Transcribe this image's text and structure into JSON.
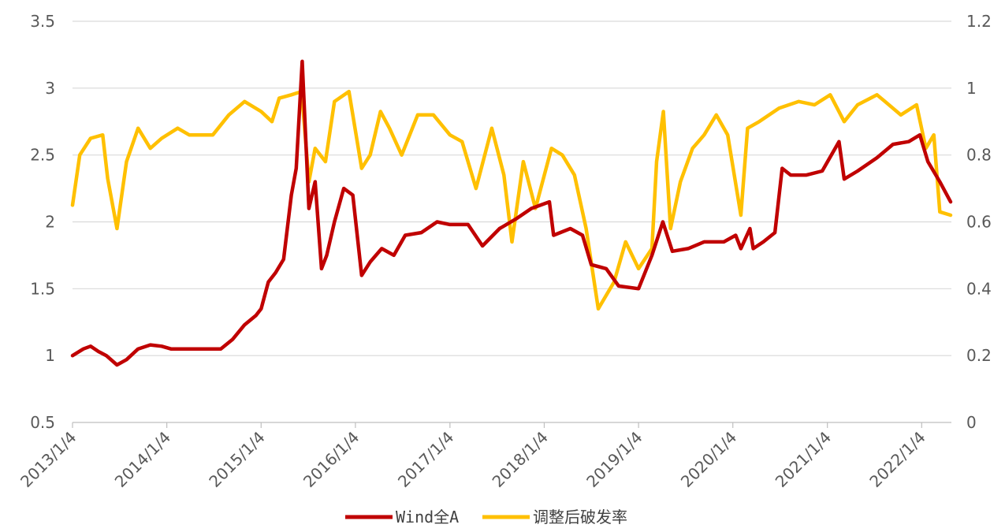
{
  "chart_data": {
    "type": "line",
    "title": "",
    "xlabel": "",
    "ylabel": "",
    "x_ticks": [
      "2013/1/4",
      "2014/1/4",
      "2015/1/4",
      "2016/1/4",
      "2017/1/4",
      "2018/1/4",
      "2019/1/4",
      "2020/1/4",
      "2021/1/4",
      "2022/1/4"
    ],
    "xlim": [
      "2013/1/4",
      "2022/4/29"
    ],
    "ylim_left": [
      0.5,
      3.5
    ],
    "y_ticks_left": [
      "0.5",
      "1",
      "1.5",
      "2",
      "2.5",
      "3",
      "3.5"
    ],
    "ylim_right": [
      0,
      1.2
    ],
    "y_ticks_right": [
      "0",
      "0.2",
      "0.4",
      "0.6",
      "0.8",
      "1",
      "1.2"
    ],
    "grid": "horizontal",
    "legend_position": "bottom",
    "series": [
      {
        "name": "Wind全A",
        "axis": "left",
        "color": "#C00000",
        "points": [
          [
            "2013/1/4",
            1.0
          ],
          [
            "2013/2/15",
            1.05
          ],
          [
            "2013/3/15",
            1.07
          ],
          [
            "2013/4/15",
            1.03
          ],
          [
            "2013/5/15",
            1.0
          ],
          [
            "2013/6/25",
            0.93
          ],
          [
            "2013/8/1",
            0.97
          ],
          [
            "2013/9/15",
            1.05
          ],
          [
            "2013/11/1",
            1.08
          ],
          [
            "2013/12/15",
            1.07
          ],
          [
            "2014/1/20",
            1.05
          ],
          [
            "2014/3/15",
            1.05
          ],
          [
            "2014/5/1",
            1.05
          ],
          [
            "2014/6/15",
            1.05
          ],
          [
            "2014/8/1",
            1.05
          ],
          [
            "2014/9/15",
            1.12
          ],
          [
            "2014/11/1",
            1.23
          ],
          [
            "2014/12/15",
            1.3
          ],
          [
            "2015/1/4",
            1.35
          ],
          [
            "2015/2/1",
            1.55
          ],
          [
            "2015/3/1",
            1.62
          ],
          [
            "2015/4/1",
            1.72
          ],
          [
            "2015/5/1",
            2.2
          ],
          [
            "2015/5/20",
            2.4
          ],
          [
            "2015/6/12",
            3.2
          ],
          [
            "2015/7/8",
            2.1
          ],
          [
            "2015/8/1",
            2.3
          ],
          [
            "2015/8/26",
            1.65
          ],
          [
            "2015/9/15",
            1.75
          ],
          [
            "2015/10/15",
            2.0
          ],
          [
            "2015/11/20",
            2.25
          ],
          [
            "2015/12/25",
            2.2
          ],
          [
            "2016/1/28",
            1.6
          ],
          [
            "2016/3/1",
            1.7
          ],
          [
            "2016/4/15",
            1.8
          ],
          [
            "2016/6/1",
            1.75
          ],
          [
            "2016/7/15",
            1.9
          ],
          [
            "2016/9/15",
            1.92
          ],
          [
            "2016/11/15",
            2.0
          ],
          [
            "2017/1/4",
            1.98
          ],
          [
            "2017/3/15",
            1.98
          ],
          [
            "2017/5/10",
            1.82
          ],
          [
            "2017/7/15",
            1.95
          ],
          [
            "2017/9/15",
            2.02
          ],
          [
            "2017/11/15",
            2.1
          ],
          [
            "2018/1/24",
            2.15
          ],
          [
            "2018/2/9",
            1.9
          ],
          [
            "2018/4/15",
            1.95
          ],
          [
            "2018/6/1",
            1.9
          ],
          [
            "2018/7/5",
            1.68
          ],
          [
            "2018/9/1",
            1.65
          ],
          [
            "2018/10/19",
            1.52
          ],
          [
            "2019/1/4",
            1.5
          ],
          [
            "2019/2/25",
            1.75
          ],
          [
            "2019/4/8",
            2.0
          ],
          [
            "2019/5/15",
            1.78
          ],
          [
            "2019/7/15",
            1.8
          ],
          [
            "2019/9/15",
            1.85
          ],
          [
            "2019/11/30",
            1.85
          ],
          [
            "2020/1/15",
            1.9
          ],
          [
            "2020/2/4",
            1.8
          ],
          [
            "2020/3/10",
            1.95
          ],
          [
            "2020/3/23",
            1.8
          ],
          [
            "2020/5/1",
            1.85
          ],
          [
            "2020/6/15",
            1.92
          ],
          [
            "2020/7/13",
            2.4
          ],
          [
            "2020/8/15",
            2.35
          ],
          [
            "2020/10/15",
            2.35
          ],
          [
            "2020/12/15",
            2.38
          ],
          [
            "2021/2/18",
            2.6
          ],
          [
            "2021/3/10",
            2.32
          ],
          [
            "2021/5/1",
            2.38
          ],
          [
            "2021/7/15",
            2.48
          ],
          [
            "2021/9/15",
            2.58
          ],
          [
            "2021/11/15",
            2.6
          ],
          [
            "2021/12/28",
            2.65
          ],
          [
            "2022/1/28",
            2.45
          ],
          [
            "2022/3/15",
            2.3
          ],
          [
            "2022/4/26",
            2.15
          ]
        ]
      },
      {
        "name": "调整后破发率",
        "axis": "right",
        "color": "#FFC000",
        "points": [
          [
            "2013/1/4",
            0.65
          ],
          [
            "2013/2/1",
            0.8
          ],
          [
            "2013/3/15",
            0.85
          ],
          [
            "2013/5/1",
            0.86
          ],
          [
            "2013/5/20",
            0.73
          ],
          [
            "2013/6/25",
            0.58
          ],
          [
            "2013/8/1",
            0.78
          ],
          [
            "2013/9/15",
            0.88
          ],
          [
            "2013/11/1",
            0.82
          ],
          [
            "2013/12/15",
            0.85
          ],
          [
            "2014/2/15",
            0.88
          ],
          [
            "2014/4/1",
            0.86
          ],
          [
            "2014/5/15",
            0.86
          ],
          [
            "2014/7/1",
            0.86
          ],
          [
            "2014/9/1",
            0.92
          ],
          [
            "2014/11/1",
            0.96
          ],
          [
            "2015/1/4",
            0.93
          ],
          [
            "2015/2/15",
            0.9
          ],
          [
            "2015/3/15",
            0.97
          ],
          [
            "2015/5/1",
            0.98
          ],
          [
            "2015/6/10",
            0.99
          ],
          [
            "2015/7/8",
            0.72
          ],
          [
            "2015/8/1",
            0.82
          ],
          [
            "2015/9/10",
            0.78
          ],
          [
            "2015/10/15",
            0.96
          ],
          [
            "2015/12/10",
            0.99
          ],
          [
            "2016/1/28",
            0.76
          ],
          [
            "2016/3/1",
            0.8
          ],
          [
            "2016/4/10",
            0.93
          ],
          [
            "2016/5/15",
            0.88
          ],
          [
            "2016/7/1",
            0.8
          ],
          [
            "2016/9/1",
            0.92
          ],
          [
            "2016/11/1",
            0.92
          ],
          [
            "2017/1/4",
            0.86
          ],
          [
            "2017/2/20",
            0.84
          ],
          [
            "2017/4/15",
            0.7
          ],
          [
            "2017/6/15",
            0.88
          ],
          [
            "2017/8/1",
            0.74
          ],
          [
            "2017/9/1",
            0.54
          ],
          [
            "2017/10/15",
            0.78
          ],
          [
            "2017/12/1",
            0.64
          ],
          [
            "2018/2/1",
            0.82
          ],
          [
            "2018/3/15",
            0.8
          ],
          [
            "2018/5/1",
            0.74
          ],
          [
            "2018/6/15",
            0.58
          ],
          [
            "2018/8/1",
            0.34
          ],
          [
            "2018/10/1",
            0.42
          ],
          [
            "2018/11/15",
            0.54
          ],
          [
            "2019/1/4",
            0.46
          ],
          [
            "2019/2/25",
            0.52
          ],
          [
            "2019/3/15",
            0.78
          ],
          [
            "2019/4/10",
            0.93
          ],
          [
            "2019/5/8",
            0.58
          ],
          [
            "2019/6/15",
            0.72
          ],
          [
            "2019/8/1",
            0.82
          ],
          [
            "2019/9/15",
            0.86
          ],
          [
            "2019/11/1",
            0.92
          ],
          [
            "2019/12/15",
            0.86
          ],
          [
            "2020/2/4",
            0.62
          ],
          [
            "2020/3/1",
            0.88
          ],
          [
            "2020/4/15",
            0.9
          ],
          [
            "2020/7/1",
            0.94
          ],
          [
            "2020/9/15",
            0.96
          ],
          [
            "2020/11/15",
            0.95
          ],
          [
            "2021/1/15",
            0.98
          ],
          [
            "2021/3/10",
            0.9
          ],
          [
            "2021/5/1",
            0.95
          ],
          [
            "2021/7/15",
            0.98
          ],
          [
            "2021/8/15",
            0.96
          ],
          [
            "2021/10/15",
            0.92
          ],
          [
            "2021/12/15",
            0.95
          ],
          [
            "2022/1/20",
            0.82
          ],
          [
            "2022/2/20",
            0.86
          ],
          [
            "2022/3/15",
            0.63
          ],
          [
            "2022/4/26",
            0.62
          ]
        ]
      }
    ]
  }
}
